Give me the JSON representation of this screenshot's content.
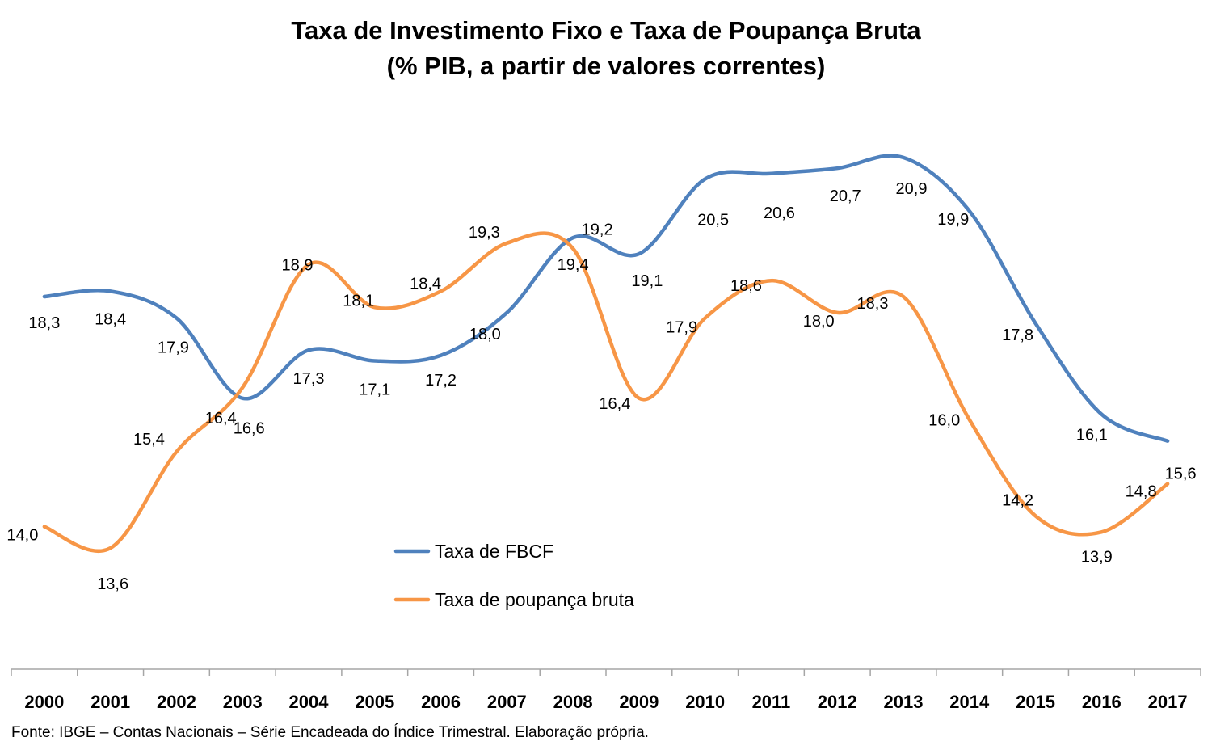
{
  "title_line1": "Taxa de Investimento Fixo e Taxa de Poupança Bruta",
  "title_line2": "(% PIB, a partir de valores correntes)",
  "source": "Fonte: IBGE – Contas Nacionais – Série Encadeada do Índice Trimestral. Elaboração própria.",
  "chart_data": {
    "type": "line",
    "title": "Taxa de Investimento Fixo e Taxa de Poupança Bruta (% PIB, a partir de valores correntes)",
    "xlabel": "",
    "ylabel": "",
    "smooth": true,
    "grid": false,
    "legend_position": "center-left",
    "categories": [
      "2000",
      "2001",
      "2002",
      "2003",
      "2004",
      "2005",
      "2006",
      "2007",
      "2008",
      "2009",
      "2010",
      "2011",
      "2012",
      "2013",
      "2014",
      "2015",
      "2016",
      "2017"
    ],
    "series": [
      {
        "name": "Taxa de FBCF",
        "color": "#4F81BD",
        "values": [
          18.3,
          18.4,
          17.9,
          16.4,
          17.3,
          17.1,
          17.2,
          18.0,
          19.4,
          19.1,
          20.5,
          20.6,
          20.7,
          20.9,
          19.9,
          17.8,
          16.1,
          15.6
        ],
        "labels": [
          "18,3",
          "18,4",
          "17,9",
          "16,4",
          "17,3",
          "17,1",
          "17,2",
          "18,0",
          "19,4",
          "19,1",
          "20,5",
          "20,6",
          "20,7",
          "20,9",
          "19,9",
          "17,8",
          "16,1",
          "15,6"
        ]
      },
      {
        "name": "Taxa de poupança bruta",
        "color": "#F79646",
        "values": [
          14.0,
          13.6,
          15.4,
          16.6,
          18.9,
          18.1,
          18.4,
          19.3,
          19.2,
          16.4,
          17.9,
          18.6,
          18.0,
          18.3,
          16.0,
          14.2,
          13.9,
          14.8
        ],
        "labels": [
          "14,0",
          "13,6",
          "15,4",
          "16,6",
          "18,9",
          "18,1",
          "18,4",
          "19,3",
          "19,2",
          "16,4",
          "17,9",
          "18,6",
          "18,0",
          "18,3",
          "16,0",
          "14,2",
          "13,9",
          "14,8"
        ]
      }
    ]
  }
}
